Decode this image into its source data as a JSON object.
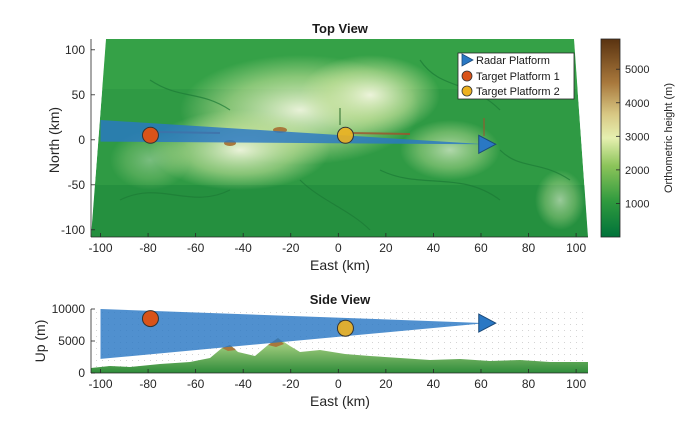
{
  "chart_data": [
    {
      "type": "scatter",
      "title": "Top View",
      "xlabel": "East (km)",
      "ylabel": "North (km)",
      "xlim": [
        -104,
        105
      ],
      "ylim": [
        -108,
        112
      ],
      "xticks": [
        "-100",
        "-80",
        "-60",
        "-40",
        "-20",
        "0",
        "20",
        "40",
        "60",
        "80",
        "100"
      ],
      "yticks": [
        "100",
        "50",
        "0",
        "-50",
        "-100"
      ],
      "grid": false,
      "legend_position": "top-right",
      "background": "terrain elevation map",
      "colorbar": {
        "label": "Orthometric height (m)",
        "range": [
          0,
          5900
        ],
        "ticks": [
          "5000",
          "4000",
          "3000",
          "2000",
          "1000"
        ]
      },
      "beam": {
        "from": [
          62,
          -5
        ],
        "to_top": [
          -100,
          22
        ],
        "to_bottom": [
          -100,
          -2
        ]
      },
      "series": [
        {
          "name": "Radar Platform",
          "marker": "triangle-right",
          "color": "#2a78c4",
          "points": [
            [
              62,
              -5
            ]
          ]
        },
        {
          "name": "Target Platform 1",
          "marker": "circle",
          "color": "#d95319",
          "points": [
            [
              -79,
              5
            ]
          ]
        },
        {
          "name": "Target Platform 2",
          "marker": "circle",
          "color": "#edb120",
          "points": [
            [
              3,
              5
            ]
          ]
        }
      ]
    },
    {
      "type": "scatter",
      "title": "Side View",
      "xlabel": "East (km)",
      "ylabel": "Up (m)",
      "xlim": [
        -104,
        105
      ],
      "ylim": [
        0,
        10000
      ],
      "xticks": [
        "-100",
        "-80",
        "-60",
        "-40",
        "-20",
        "0",
        "20",
        "40",
        "60",
        "80",
        "100"
      ],
      "yticks": [
        "10000",
        "5000",
        "0"
      ],
      "grid": true,
      "beam": {
        "from": [
          62,
          7800
        ],
        "to_top": [
          -100,
          10000
        ],
        "to_bottom": [
          -100,
          2200
        ]
      },
      "series": [
        {
          "name": "Radar Platform",
          "marker": "triangle-right",
          "color": "#2a78c4",
          "points": [
            [
              62,
              7800
            ]
          ]
        },
        {
          "name": "Target Platform 1",
          "marker": "circle",
          "color": "#d95319",
          "points": [
            [
              -79,
              8500
            ]
          ]
        },
        {
          "name": "Target Platform 2",
          "marker": "circle",
          "color": "#edb120",
          "points": [
            [
              3,
              7000
            ]
          ]
        }
      ]
    }
  ]
}
